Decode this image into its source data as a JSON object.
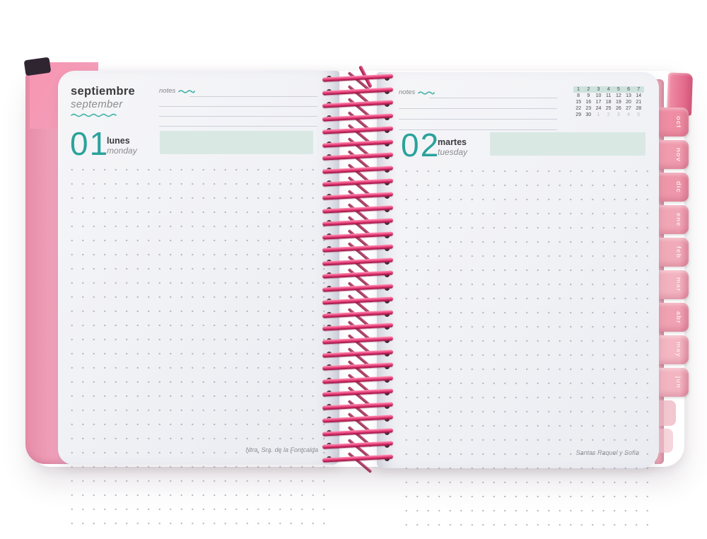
{
  "planner": {
    "left_page": {
      "month_name_es": "septiembre",
      "month_name_en": "september",
      "notes_label": "notes",
      "day_number": "01",
      "day_name_es": "lunes",
      "day_name_en": "monday",
      "saint_day_label": "Ntra. Sra. de la Fontcalda"
    },
    "right_page": {
      "notes_label": "notes",
      "day_number": "02",
      "day_name_es": "martes",
      "day_name_en": "tuesday",
      "saint_day_label": "Santas Raquel y Sofía",
      "mini_calendar": {
        "rows": [
          [
            "1",
            "2",
            "3",
            "4",
            "5",
            "6",
            "7"
          ],
          [
            "8",
            "9",
            "10",
            "11",
            "12",
            "13",
            "14"
          ],
          [
            "15",
            "16",
            "17",
            "18",
            "19",
            "20",
            "21"
          ],
          [
            "22",
            "23",
            "24",
            "25",
            "26",
            "27",
            "28"
          ],
          [
            "29",
            "30",
            "1",
            "2",
            "3",
            "4",
            "5"
          ]
        ],
        "highlighted_row_index": 0,
        "dim_cells_row_index": 4,
        "dim_cells_from_col": 2
      }
    },
    "month_tabs": [
      {
        "label": "oct",
        "color": "#ee8da3"
      },
      {
        "label": "nov",
        "color": "#f09cae"
      },
      {
        "label": "dic",
        "color": "#ee97aa"
      },
      {
        "label": "ene",
        "color": "#f1a6b5"
      },
      {
        "label": "feb",
        "color": "#f1abb8"
      },
      {
        "label": "mar",
        "color": "#f3b2bf"
      },
      {
        "label": "abr",
        "color": "#f0a2b2"
      },
      {
        "label": "may",
        "color": "#f4b7c3"
      },
      {
        "label": "jun",
        "color": "#f3b5c1"
      }
    ],
    "colors": {
      "accent_teal": "#2aa39b",
      "squiggle_teal": "#49b6aa",
      "highlight_mint": "#d9e8e3",
      "calendar_highlight_mint": "#cde2dc",
      "spiral_pink": "#e0467c",
      "cover_pink": "#f0a0ba",
      "page_background": "#f0f1f5"
    }
  }
}
